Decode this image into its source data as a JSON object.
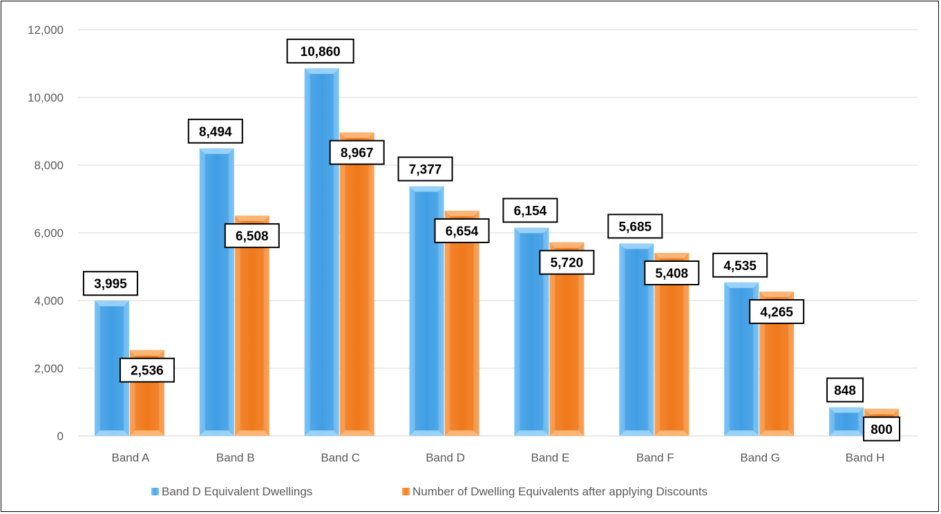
{
  "chart_data": {
    "type": "bar",
    "title": "",
    "xlabel": "",
    "ylabel": "",
    "categories": [
      "Band A",
      "Band B",
      "Band C",
      "Band D",
      "Band E",
      "Band F",
      "Band G",
      "Band H"
    ],
    "series": [
      {
        "name": "Band D Equivalent Dwellings",
        "color": "#5EB1F0",
        "values": [
          3995,
          8494,
          10860,
          7377,
          6154,
          5685,
          4535,
          848
        ],
        "labels": [
          "3,995",
          "8,494",
          "10,860",
          "7,377",
          "6,154",
          "5,685",
          "4,535",
          "848"
        ]
      },
      {
        "name": "Number of Dwelling Equivalents after applying Discounts",
        "color": "#F58A35",
        "values": [
          2536,
          6508,
          8967,
          6654,
          5720,
          5408,
          4265,
          800
        ],
        "labels": [
          "2,536",
          "6,508",
          "8,967",
          "6,654",
          "5,720",
          "5,408",
          "4,265",
          "800"
        ]
      }
    ],
    "ylim": [
      0,
      12000
    ],
    "yticks": [
      0,
      2000,
      4000,
      6000,
      8000,
      10000,
      12000
    ],
    "ytick_labels": [
      "0",
      "2,000",
      "4,000",
      "6,000",
      "8,000",
      "10,000",
      "12,000"
    ],
    "grid": true,
    "legend_position": "bottom"
  }
}
